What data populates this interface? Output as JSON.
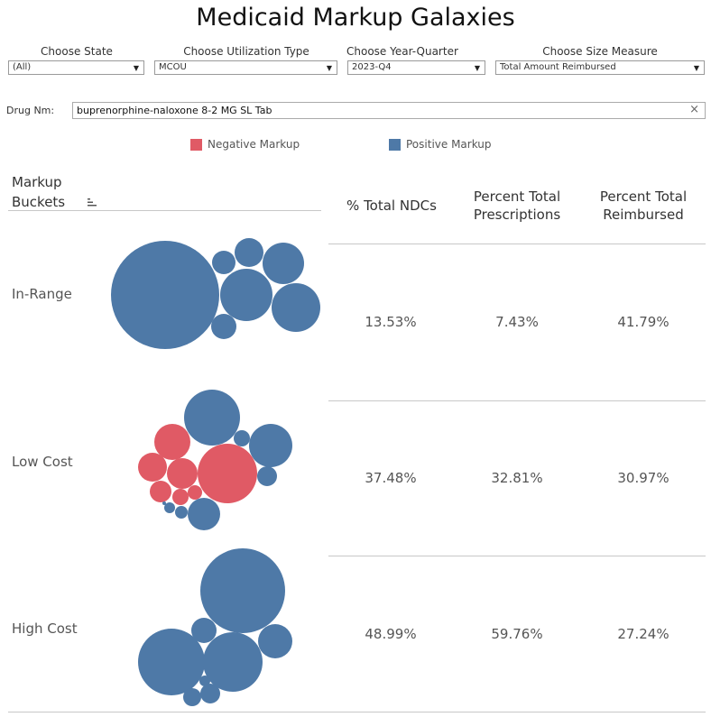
{
  "title": "Medicaid Markup Galaxies",
  "filters": [
    {
      "label": "Choose State",
      "value": "(All)"
    },
    {
      "label": "Choose Utilization Type",
      "value": "MCOU"
    },
    {
      "label": "Choose Year-Quarter",
      "value": "2023-Q4"
    },
    {
      "label": "Choose Size Measure",
      "value": "Total Amount Reimbursed"
    }
  ],
  "drug": {
    "label": "Drug Nm:",
    "value": "buprenorphine-naloxone 8-2 MG SL Tab"
  },
  "legend": [
    {
      "label": "Negative Markup",
      "color": "#e05a65"
    },
    {
      "label": "Positive Markup",
      "color": "#4e79a7"
    }
  ],
  "table": {
    "bucket_header_line1": "Markup",
    "bucket_header_line2": "Buckets",
    "col1": "% Total NDCs",
    "col2_line1": "Percent Total",
    "col2_line2": "Prescriptions",
    "col3_line1": "Percent Total",
    "col3_line2": "Reimbursed",
    "rows": [
      {
        "bucket": "In-Range",
        "pct_ndcs": "13.53%",
        "pct_rx": "7.43%",
        "pct_reimb": "41.79%"
      },
      {
        "bucket": "Low Cost",
        "pct_ndcs": "37.48%",
        "pct_rx": "32.81%",
        "pct_reimb": "30.97%"
      },
      {
        "bucket": "High Cost",
        "pct_ndcs": "48.99%",
        "pct_rx": "59.76%",
        "pct_reimb": "27.24%"
      }
    ]
  }
}
